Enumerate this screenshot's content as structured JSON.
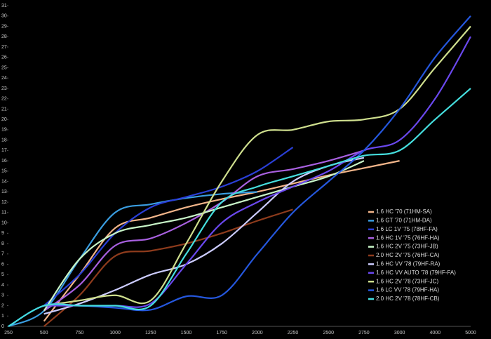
{
  "chart_data": {
    "type": "line",
    "categories": [
      "250",
      "500",
      "750",
      "1000",
      "1250",
      "1500",
      "1750",
      "2000",
      "2250",
      "2500",
      "2750",
      "3000",
      "4000",
      "5000"
    ],
    "ylim": [
      0,
      31
    ],
    "yticks": [
      0,
      1,
      2,
      3,
      4,
      5,
      6,
      7,
      8,
      9,
      10,
      11,
      12,
      13,
      14,
      15,
      16,
      17,
      18,
      19,
      20,
      21,
      22,
      23,
      24,
      25,
      26,
      27,
      28,
      29,
      30,
      31
    ],
    "legend": "lower right",
    "series": [
      {
        "name": "1.6 HC '70 (71HM-SA)",
        "color": "#f2b58a",
        "values": [
          null,
          0.5,
          5,
          9.5,
          10.5,
          11.5,
          12.3,
          13,
          13.8,
          14.6,
          15.3,
          16,
          null,
          null
        ]
      },
      {
        "name": "1.6 GT '70 (71HM-DA)",
        "color": "#3a9de0",
        "values": [
          0,
          1.5,
          6.5,
          11,
          11.8,
          12.4,
          12.8,
          13,
          null,
          null,
          null,
          null,
          null,
          null
        ]
      },
      {
        "name": "1.6 LC 1V '75 (78HF-FA)",
        "color": "#2a3fd6",
        "values": [
          null,
          2,
          5,
          9,
          11.5,
          12.5,
          13.5,
          15,
          17.3,
          null,
          null,
          null,
          null,
          null
        ]
      },
      {
        "name": "1.6 HC 1V '75 (76HF-HA)",
        "color": "#a860e0",
        "values": [
          null,
          1.5,
          4,
          7.8,
          8.5,
          10,
          12,
          14.5,
          15.2,
          16,
          17,
          null,
          null,
          null
        ]
      },
      {
        "name": "1.6 HC 2V '75 (73HF-JB)",
        "color": "#c8f5c8",
        "values": [
          null,
          1.5,
          6.5,
          9,
          9.8,
          10.5,
          11.5,
          12.5,
          13.5,
          14.5,
          16,
          null,
          null,
          null
        ]
      },
      {
        "name": "2.0 HC 2V '75 (76HF-CA)",
        "color": "#8e3b1c",
        "values": [
          null,
          0,
          3,
          6.8,
          7.3,
          8,
          9,
          10.2,
          11.3,
          null,
          null,
          null,
          null,
          null
        ]
      },
      {
        "name": "1.6 HC VV '78 (79HF-RA)",
        "color": "#ccccff",
        "values": [
          null,
          1.2,
          2.2,
          3.5,
          5,
          6,
          8,
          11,
          14,
          15.5,
          16.3,
          null,
          null,
          null
        ]
      },
      {
        "name": "1.6 HC VV AUTO '78 (79HF-FA)",
        "color": "#6a48ee",
        "values": [
          null,
          2,
          2,
          2,
          2.2,
          6,
          10,
          12,
          13.5,
          15,
          17,
          18,
          22,
          28
        ]
      },
      {
        "name": "1.6 HC 2V '78 (73HF-JC)",
        "color": "#cfdf8e",
        "values": [
          null,
          2,
          2.5,
          3,
          2.5,
          8,
          14,
          18.5,
          19,
          19.8,
          20,
          21,
          25,
          29
        ]
      },
      {
        "name": "1.6 LC VV '78 (79HF-HA)",
        "color": "#2557dd",
        "values": [
          0,
          2,
          2,
          1.8,
          1.6,
          2.9,
          3,
          7,
          11,
          14,
          17,
          21,
          26,
          30
        ]
      },
      {
        "name": "2.0 HC 2V '78 (78HF-CB)",
        "color": "#45dede",
        "values": [
          0,
          2,
          2,
          2,
          2,
          7,
          12,
          13.5,
          14.5,
          15.5,
          16.5,
          17,
          20,
          23
        ]
      }
    ]
  }
}
